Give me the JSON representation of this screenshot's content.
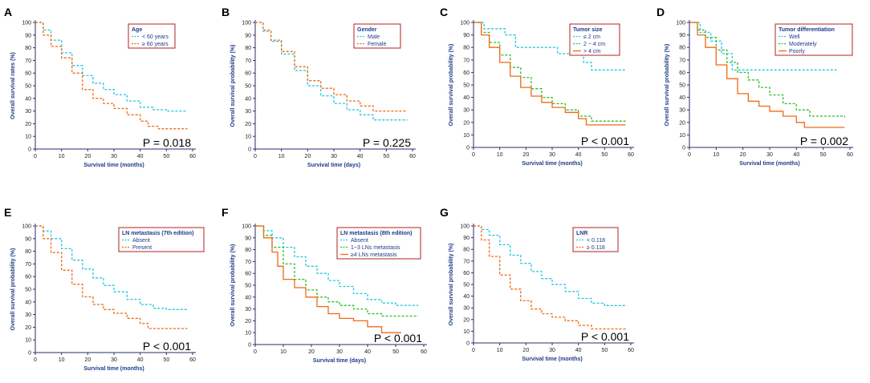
{
  "colors": {
    "cyan": "#22c7e0",
    "orange": "#f06a13",
    "green": "#2fbd2a",
    "axis": "#2b2b6b",
    "label": "#1f3a8a"
  },
  "chart_data": [
    {
      "type": "line",
      "panel": "A",
      "xlabel": "Survival time (months)",
      "ylabel": "Overall survival rates (%)",
      "xlim": [
        0,
        60
      ],
      "ylim": [
        0,
        100
      ],
      "xticks": [
        0,
        10,
        20,
        30,
        40,
        50,
        60
      ],
      "yticks": [
        0,
        10,
        20,
        30,
        40,
        50,
        60,
        70,
        80,
        90,
        100
      ],
      "legend_title": "Age",
      "pvalue": "P = 0.018",
      "series": [
        {
          "name": "< 60 years",
          "color": "#22c7e0",
          "dash": true,
          "x": [
            0,
            3,
            6,
            10,
            14,
            18,
            22,
            26,
            30,
            35,
            40,
            45,
            50,
            58
          ],
          "y": [
            100,
            94,
            86,
            76,
            66,
            58,
            52,
            47,
            43,
            38,
            33,
            31,
            30,
            30
          ]
        },
        {
          "name": "≥ 60 years",
          "color": "#f06a13",
          "dash": true,
          "x": [
            0,
            3,
            6,
            10,
            14,
            18,
            22,
            26,
            30,
            35,
            40,
            43,
            47,
            58
          ],
          "y": [
            100,
            90,
            81,
            72,
            60,
            47,
            40,
            36,
            32,
            27,
            22,
            18,
            16,
            16
          ]
        }
      ]
    },
    {
      "type": "line",
      "panel": "B",
      "xlabel": "Survival time (days)",
      "ylabel": "Overall survival probability (%)",
      "xlim": [
        0,
        60
      ],
      "ylim": [
        0,
        100
      ],
      "xticks": [
        0,
        10,
        20,
        30,
        40,
        50,
        60
      ],
      "yticks": [
        0,
        10,
        20,
        30,
        40,
        50,
        60,
        70,
        80,
        90,
        100
      ],
      "legend_title": "Gender",
      "pvalue": "P = 0.225",
      "series": [
        {
          "name": "Male",
          "color": "#22c7e0",
          "dash": true,
          "x": [
            0,
            3,
            6,
            10,
            15,
            20,
            25,
            30,
            35,
            40,
            45,
            58
          ],
          "y": [
            100,
            93,
            85,
            75,
            62,
            50,
            42,
            36,
            31,
            27,
            23,
            23
          ]
        },
        {
          "name": "Female",
          "color": "#f06a13",
          "dash": true,
          "x": [
            0,
            3,
            6,
            10,
            15,
            20,
            25,
            30,
            35,
            40,
            45,
            58
          ],
          "y": [
            100,
            94,
            86,
            77,
            65,
            54,
            48,
            43,
            38,
            34,
            30,
            30
          ]
        }
      ]
    },
    {
      "type": "line",
      "panel": "C",
      "xlabel": "Survival time (months)",
      "ylabel": "Overall survival probability (%)",
      "xlim": [
        0,
        60
      ],
      "ylim": [
        0,
        100
      ],
      "xticks": [
        0,
        10,
        20,
        30,
        40,
        50,
        60
      ],
      "yticks": [
        0,
        10,
        20,
        30,
        40,
        50,
        60,
        70,
        80,
        90,
        100
      ],
      "legend_title": "Tumor size",
      "pvalue": "P < 0.001",
      "series": [
        {
          "name": "≤ 2 cm",
          "color": "#22c7e0",
          "dash": true,
          "x": [
            0,
            4,
            8,
            12,
            16,
            30,
            32,
            38,
            42,
            45,
            58
          ],
          "y": [
            100,
            95,
            95,
            90,
            80,
            80,
            75,
            75,
            68,
            62,
            62
          ]
        },
        {
          "name": "2 ~ 4 cm",
          "color": "#2fbd2a",
          "dash": true,
          "x": [
            0,
            3,
            6,
            10,
            14,
            18,
            22,
            26,
            30,
            35,
            40,
            45,
            58
          ],
          "y": [
            100,
            92,
            84,
            74,
            64,
            56,
            47,
            40,
            35,
            30,
            25,
            21,
            21
          ]
        },
        {
          "name": "> 4 cm",
          "color": "#f06a13",
          "dash": false,
          "x": [
            0,
            3,
            6,
            10,
            14,
            18,
            22,
            26,
            30,
            35,
            40,
            43,
            58
          ],
          "y": [
            100,
            90,
            80,
            68,
            57,
            48,
            41,
            36,
            32,
            28,
            23,
            18,
            18
          ]
        }
      ]
    },
    {
      "type": "line",
      "panel": "D",
      "xlabel": "Survival time (months)",
      "ylabel": "Overall survival probability (%)",
      "xlim": [
        0,
        60
      ],
      "ylim": [
        0,
        100
      ],
      "xticks": [
        0,
        10,
        20,
        30,
        40,
        50,
        60
      ],
      "yticks": [
        0,
        10,
        20,
        30,
        40,
        50,
        60,
        70,
        80,
        90,
        100
      ],
      "legend_title": "Tumor differentiation",
      "pvalue": "P = 0.002",
      "series": [
        {
          "name": "Well",
          "color": "#22c7e0",
          "dash": true,
          "x": [
            0,
            4,
            8,
            12,
            16,
            20,
            55
          ],
          "y": [
            100,
            92,
            85,
            75,
            62,
            62,
            62
          ]
        },
        {
          "name": "Moderately",
          "color": "#2fbd2a",
          "dash": true,
          "x": [
            0,
            3,
            6,
            10,
            14,
            18,
            22,
            26,
            30,
            35,
            40,
            45,
            58
          ],
          "y": [
            100,
            94,
            88,
            78,
            68,
            60,
            54,
            48,
            42,
            35,
            30,
            25,
            24
          ]
        },
        {
          "name": "Poorly",
          "color": "#f06a13",
          "dash": false,
          "x": [
            0,
            3,
            6,
            10,
            14,
            18,
            22,
            26,
            30,
            35,
            40,
            43,
            58
          ],
          "y": [
            100,
            90,
            80,
            66,
            55,
            43,
            37,
            33,
            29,
            25,
            20,
            16,
            16
          ]
        }
      ]
    },
    {
      "type": "line",
      "panel": "E",
      "xlabel": "Survival time (months)",
      "ylabel": "Overall survival probability (%)",
      "xlim": [
        0,
        60
      ],
      "ylim": [
        0,
        100
      ],
      "xticks": [
        0,
        10,
        20,
        30,
        40,
        50,
        60
      ],
      "yticks": [
        0,
        10,
        20,
        30,
        40,
        50,
        60,
        70,
        80,
        90,
        100
      ],
      "legend_title": "LN metastasis (7th edition)",
      "pvalue": "P < 0.001",
      "series": [
        {
          "name": "Absent",
          "color": "#22c7e0",
          "dash": true,
          "x": [
            0,
            3,
            6,
            10,
            14,
            18,
            22,
            26,
            30,
            35,
            40,
            45,
            50,
            58
          ],
          "y": [
            100,
            96,
            90,
            82,
            73,
            66,
            59,
            53,
            48,
            42,
            38,
            35,
            34,
            34
          ]
        },
        {
          "name": "Present",
          "color": "#f06a13",
          "dash": true,
          "x": [
            0,
            3,
            6,
            10,
            14,
            18,
            22,
            26,
            30,
            35,
            40,
            43,
            58
          ],
          "y": [
            100,
            90,
            79,
            65,
            54,
            44,
            38,
            34,
            31,
            27,
            23,
            19,
            19
          ]
        }
      ]
    },
    {
      "type": "line",
      "panel": "F",
      "xlabel": "Survival time (days)",
      "ylabel": "Overall survival probability (%)",
      "xlim": [
        0,
        60
      ],
      "ylim": [
        0,
        100
      ],
      "xticks": [
        0,
        10,
        20,
        30,
        40,
        50,
        60
      ],
      "yticks": [
        0,
        10,
        20,
        30,
        40,
        50,
        60,
        70,
        80,
        90,
        100
      ],
      "legend_title": "LN metastasis (8th edition)",
      "pvalue": "P < 0.001",
      "series": [
        {
          "name": "Absent",
          "color": "#22c7e0",
          "dash": true,
          "x": [
            0,
            3,
            6,
            10,
            14,
            18,
            22,
            26,
            30,
            35,
            40,
            45,
            50,
            58
          ],
          "y": [
            100,
            96,
            90,
            82,
            74,
            66,
            60,
            54,
            49,
            43,
            38,
            35,
            33,
            33
          ]
        },
        {
          "name": "1~3 LNs metastasis",
          "color": "#2fbd2a",
          "dash": true,
          "x": [
            0,
            3,
            6,
            10,
            14,
            18,
            22,
            26,
            30,
            35,
            40,
            45,
            58
          ],
          "y": [
            100,
            92,
            82,
            68,
            55,
            46,
            40,
            36,
            33,
            30,
            26,
            24,
            24
          ]
        },
        {
          "name": "≥4 LNs metastasis",
          "color": "#f06a13",
          "dash": false,
          "x": [
            0,
            3,
            6,
            8,
            10,
            14,
            18,
            22,
            26,
            30,
            35,
            40,
            45,
            52
          ],
          "y": [
            100,
            90,
            78,
            66,
            55,
            48,
            40,
            32,
            26,
            22,
            20,
            15,
            10,
            10
          ]
        }
      ]
    },
    {
      "type": "line",
      "panel": "G",
      "xlabel": "Survival time (months)",
      "ylabel": "Overall survival probability (%)",
      "xlim": [
        0,
        60
      ],
      "ylim": [
        0,
        100
      ],
      "xticks": [
        0,
        10,
        20,
        30,
        40,
        50,
        60
      ],
      "yticks": [
        0,
        10,
        20,
        30,
        40,
        50,
        60,
        70,
        80,
        90,
        100
      ],
      "legend_title": "LNR",
      "pvalue": "P < 0.001",
      "series": [
        {
          "name": "< 0.118",
          "color": "#22c7e0",
          "dash": true,
          "x": [
            0,
            3,
            6,
            10,
            14,
            18,
            22,
            26,
            30,
            35,
            40,
            45,
            50,
            58
          ],
          "y": [
            100,
            97,
            92,
            84,
            75,
            68,
            61,
            55,
            50,
            44,
            38,
            34,
            32,
            32
          ]
        },
        {
          "name": "≥ 0.118",
          "color": "#f06a13",
          "dash": true,
          "x": [
            0,
            3,
            6,
            10,
            14,
            18,
            22,
            26,
            30,
            35,
            40,
            45,
            58
          ],
          "y": [
            100,
            88,
            74,
            58,
            46,
            36,
            29,
            25,
            22,
            19,
            15,
            12,
            12
          ]
        }
      ]
    }
  ]
}
